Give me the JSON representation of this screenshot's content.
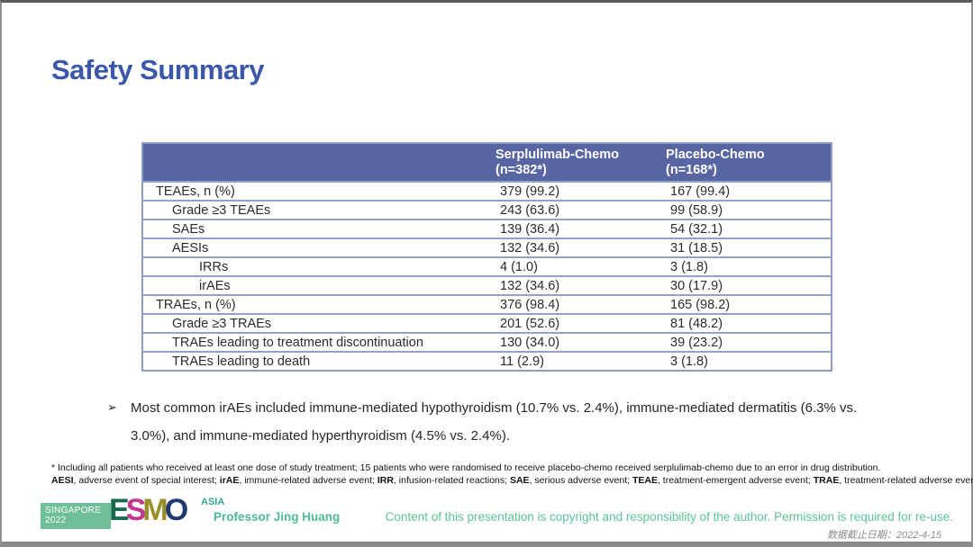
{
  "slide": {
    "title": "Safety Summary"
  },
  "table": {
    "header": [
      {
        "line1": "Serplulimab-Chemo",
        "line2": "(n=382*)"
      },
      {
        "line1": "Placebo-Chemo",
        "line2": "(n=168*)"
      }
    ],
    "rows": [
      {
        "label": "TEAEs, n (%)",
        "indent": 0,
        "serplulimab": "379 (99.2)",
        "placebo": "167 (99.4)"
      },
      {
        "label": "Grade ≥3 TEAEs",
        "indent": 1,
        "serplulimab": "243 (63.6)",
        "placebo": "99 (58.9)"
      },
      {
        "label": "SAEs",
        "indent": 1,
        "serplulimab": "139 (36.4)",
        "placebo": "54 (32.1)"
      },
      {
        "label": "AESIs",
        "indent": 1,
        "serplulimab": "132 (34.6)",
        "placebo": "31 (18.5)"
      },
      {
        "label": "IRRs",
        "indent": 2,
        "serplulimab": "4 (1.0)",
        "placebo": "3 (1.8)"
      },
      {
        "label": "irAEs",
        "indent": 2,
        "serplulimab": "132 (34.6)",
        "placebo": "30 (17.9)"
      },
      {
        "label": "TRAEs, n (%)",
        "indent": 0,
        "serplulimab": "376 (98.4)",
        "placebo": "165 (98.2)"
      },
      {
        "label": "Grade ≥3 TRAEs",
        "indent": 1,
        "serplulimab": "201 (52.6)",
        "placebo": "81 (48.2)"
      },
      {
        "label": "TRAEs leading to treatment discontinuation",
        "indent": 1,
        "serplulimab": "130 (34.0)",
        "placebo": "39 (23.2)"
      },
      {
        "label": "TRAEs leading to death",
        "indent": 1,
        "serplulimab": "11 (2.9)",
        "placebo": "3 (1.8)"
      }
    ]
  },
  "bullet": {
    "marker": "➢",
    "text": "Most common irAEs included immune-mediated hypothyroidism (10.7% vs. 2.4%), immune-mediated dermatitis (6.3% vs. 3.0%), and immune-mediated hyperthyroidism (4.5% vs. 2.4%)."
  },
  "footnotes": {
    "asterisk": "* Including all patients who received at least one dose of study treatment; 15 patients who were randomised to receive placebo-chemo received serplulimab-chemo due to an error in drug distribution.",
    "abbreviations": [
      {
        "text": "AESI",
        "bold": true
      },
      {
        "text": ", adverse event of special interest; ",
        "bold": false
      },
      {
        "text": "irAE",
        "bold": true
      },
      {
        "text": ", immune-related adverse event; ",
        "bold": false
      },
      {
        "text": "IRR",
        "bold": true
      },
      {
        "text": ", infusion-related reactions; ",
        "bold": false
      },
      {
        "text": "SAE",
        "bold": true
      },
      {
        "text": ", serious adverse event; ",
        "bold": false
      },
      {
        "text": "TEAE",
        "bold": true
      },
      {
        "text": ", treatment-emergent adverse event; ",
        "bold": false
      },
      {
        "text": "TRAE",
        "bold": true
      },
      {
        "text": ", treatment-related adverse event.",
        "bold": false
      }
    ]
  },
  "footer": {
    "logo": {
      "badge_line1": "SINGAPORE",
      "badge_line2": "2022",
      "letters": [
        {
          "ch": "E",
          "color": "#17694F"
        },
        {
          "ch": "S",
          "color": "#C2388E"
        },
        {
          "ch": "M",
          "color": "#97902B"
        },
        {
          "ch": "O",
          "color": "#1F3A6E"
        }
      ],
      "suffix": "ASIA"
    },
    "presenter": "Professor Jing Huang",
    "copyright": "Content of this presentation is copyright and responsibility of the author. Permission is required for re-use.",
    "data_cutoff": "数据截止日期：2022-4-15"
  },
  "colors": {
    "title_blue": "#3B58A8",
    "table_header_bg": "#5865A3",
    "table_border": "#95A0CB",
    "presenter_green": "#4CBD92",
    "copyright_green": "#5BC495",
    "logo_badge_green": "#6FBF9A",
    "logo_asia_teal": "#2FAE8C"
  }
}
